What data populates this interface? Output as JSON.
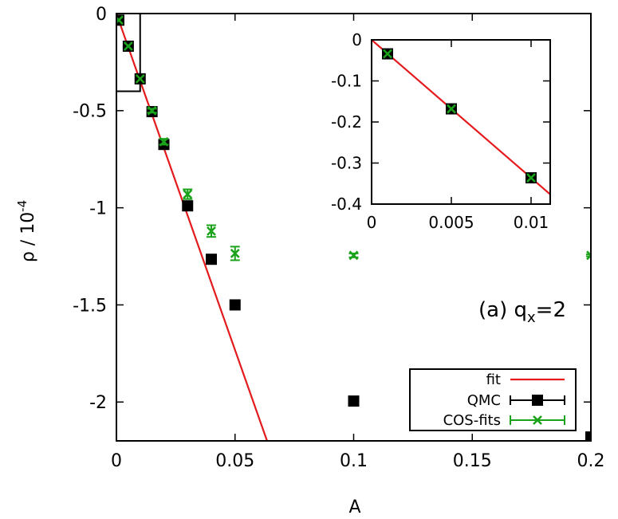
{
  "chart_data": [
    {
      "type": "scatter",
      "role": "main",
      "title": "",
      "xlabel": "A",
      "ylabel_base": "ρ / 10",
      "ylabel_exp": "-4",
      "xlim": [
        0,
        0.2
      ],
      "ylim": [
        -2.2,
        0
      ],
      "x_ticks": [
        0,
        0.05,
        0.1,
        0.15,
        0.2
      ],
      "x_tick_labels": [
        "0",
        "0.05",
        "0.1",
        "0.15",
        "0.2"
      ],
      "y_ticks": [
        0,
        -0.5,
        -1,
        -1.5,
        -2
      ],
      "y_tick_labels": [
        "0",
        "-0.5",
        "-1",
        "-1.5",
        "-2"
      ],
      "annotation": {
        "prefix": "(a) q",
        "sub": "x",
        "suffix": "=2"
      },
      "zoom_box": {
        "x": [
          0,
          0.01
        ],
        "y": [
          -0.4,
          0
        ]
      },
      "series": [
        {
          "name": "fit",
          "kind": "line",
          "color": "#e41a1c",
          "x": [
            0,
            0.0635
          ],
          "y": [
            0,
            -2.2
          ]
        },
        {
          "name": "QMC",
          "kind": "square",
          "color": "#000000",
          "x": [
            0.001,
            0.005,
            0.01,
            0.015,
            0.02,
            0.03,
            0.04,
            0.05,
            0.1,
            0.2
          ],
          "y": [
            -0.034,
            -0.168,
            -0.336,
            -0.505,
            -0.674,
            -0.99,
            -1.265,
            -1.5,
            -1.995,
            -2.18
          ],
          "err": [
            0,
            0,
            0,
            0,
            0,
            0,
            0,
            0,
            0,
            0
          ]
        },
        {
          "name": "COS-fits",
          "kind": "cross",
          "color": "#1aa31a",
          "x": [
            0.001,
            0.005,
            0.01,
            0.015,
            0.02,
            0.03,
            0.04,
            0.05,
            0.1,
            0.2
          ],
          "y": [
            -0.034,
            -0.168,
            -0.336,
            -0.5,
            -0.66,
            -0.93,
            -1.12,
            -1.235,
            -1.245,
            -1.245
          ],
          "err": [
            0,
            0,
            0,
            0.01,
            0.015,
            0.025,
            0.03,
            0.035,
            0.01,
            0.005
          ]
        }
      ],
      "legend": [
        {
          "label": "fit",
          "series": "fit"
        },
        {
          "label": "QMC",
          "series": "QMC"
        },
        {
          "label": "COS-fits",
          "series": "COS-fits"
        }
      ],
      "legend_position": "bottom-right"
    },
    {
      "type": "scatter",
      "role": "inset",
      "xlim": [
        0,
        0.0112
      ],
      "ylim": [
        -0.4,
        0
      ],
      "x_ticks": [
        0,
        0.005,
        0.01
      ],
      "x_tick_labels": [
        "0",
        "0.005",
        "0.01"
      ],
      "y_ticks": [
        0,
        -0.1,
        -0.2,
        -0.3,
        -0.4
      ],
      "y_tick_labels": [
        "0",
        "-0.1",
        "-0.2",
        "-0.3",
        "-0.4"
      ],
      "series": [
        {
          "name": "fit",
          "kind": "line",
          "color": "#e41a1c",
          "x": [
            0,
            0.0112
          ],
          "y": [
            0,
            -0.3763
          ]
        },
        {
          "name": "QMC",
          "kind": "square",
          "color": "#000000",
          "x": [
            0.001,
            0.005,
            0.01
          ],
          "y": [
            -0.034,
            -0.168,
            -0.336
          ]
        },
        {
          "name": "COS-fits",
          "kind": "cross",
          "color": "#1aa31a",
          "x": [
            0.001,
            0.005,
            0.01
          ],
          "y": [
            -0.034,
            -0.168,
            -0.336
          ]
        }
      ]
    }
  ]
}
